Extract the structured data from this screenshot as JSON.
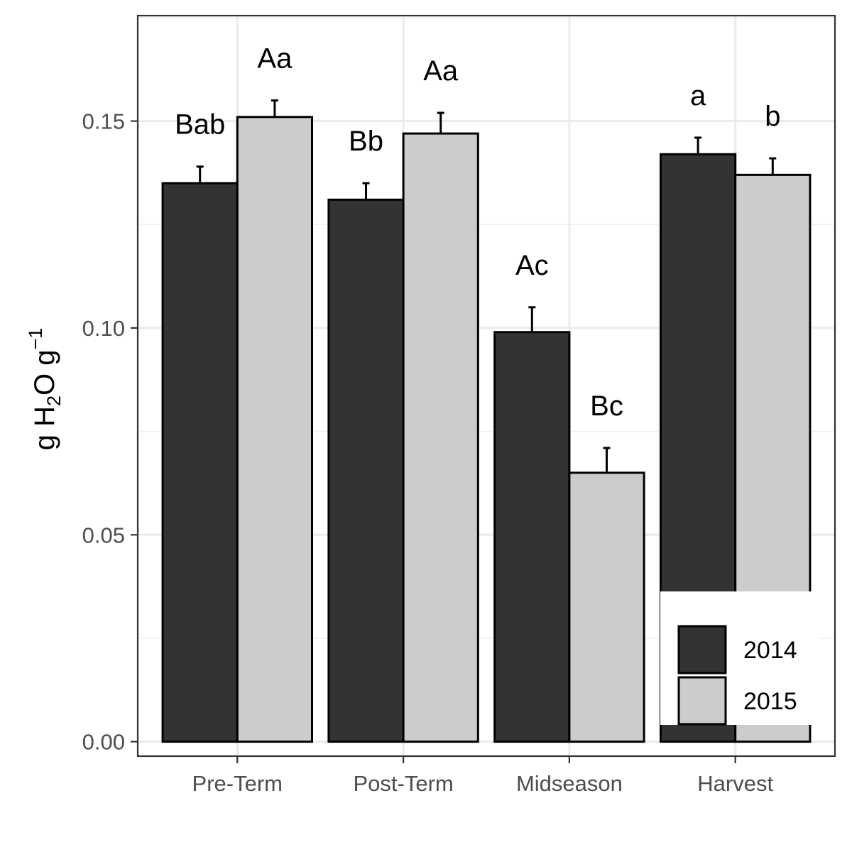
{
  "chart_data": {
    "type": "bar",
    "categories": [
      "Pre-Term",
      "Post-Term",
      "Midseason",
      "Harvest"
    ],
    "series": [
      {
        "name": "2014",
        "color": "#333333",
        "values": [
          0.135,
          0.131,
          0.099,
          0.142
        ],
        "errors": [
          0.004,
          0.004,
          0.006,
          0.004
        ]
      },
      {
        "name": "2015",
        "color": "#cccccc",
        "values": [
          0.151,
          0.147,
          0.065,
          0.137
        ],
        "errors": [
          0.004,
          0.005,
          0.006,
          0.004
        ]
      }
    ],
    "annotations": [
      [
        "Bab",
        "Aa"
      ],
      [
        "Bb",
        "Aa"
      ],
      [
        "Ac",
        "Bc"
      ],
      [
        "a",
        "b"
      ]
    ],
    "ylabel": {
      "base": "g H",
      "subscript": "2",
      "mid": "O g",
      "superscript": "−1"
    },
    "yticks": [
      "0.00",
      "0.05",
      "0.10",
      "0.15"
    ],
    "ylim": [
      -0.0035,
      0.1755
    ],
    "grid": true,
    "legend_position": "bottom-right"
  }
}
